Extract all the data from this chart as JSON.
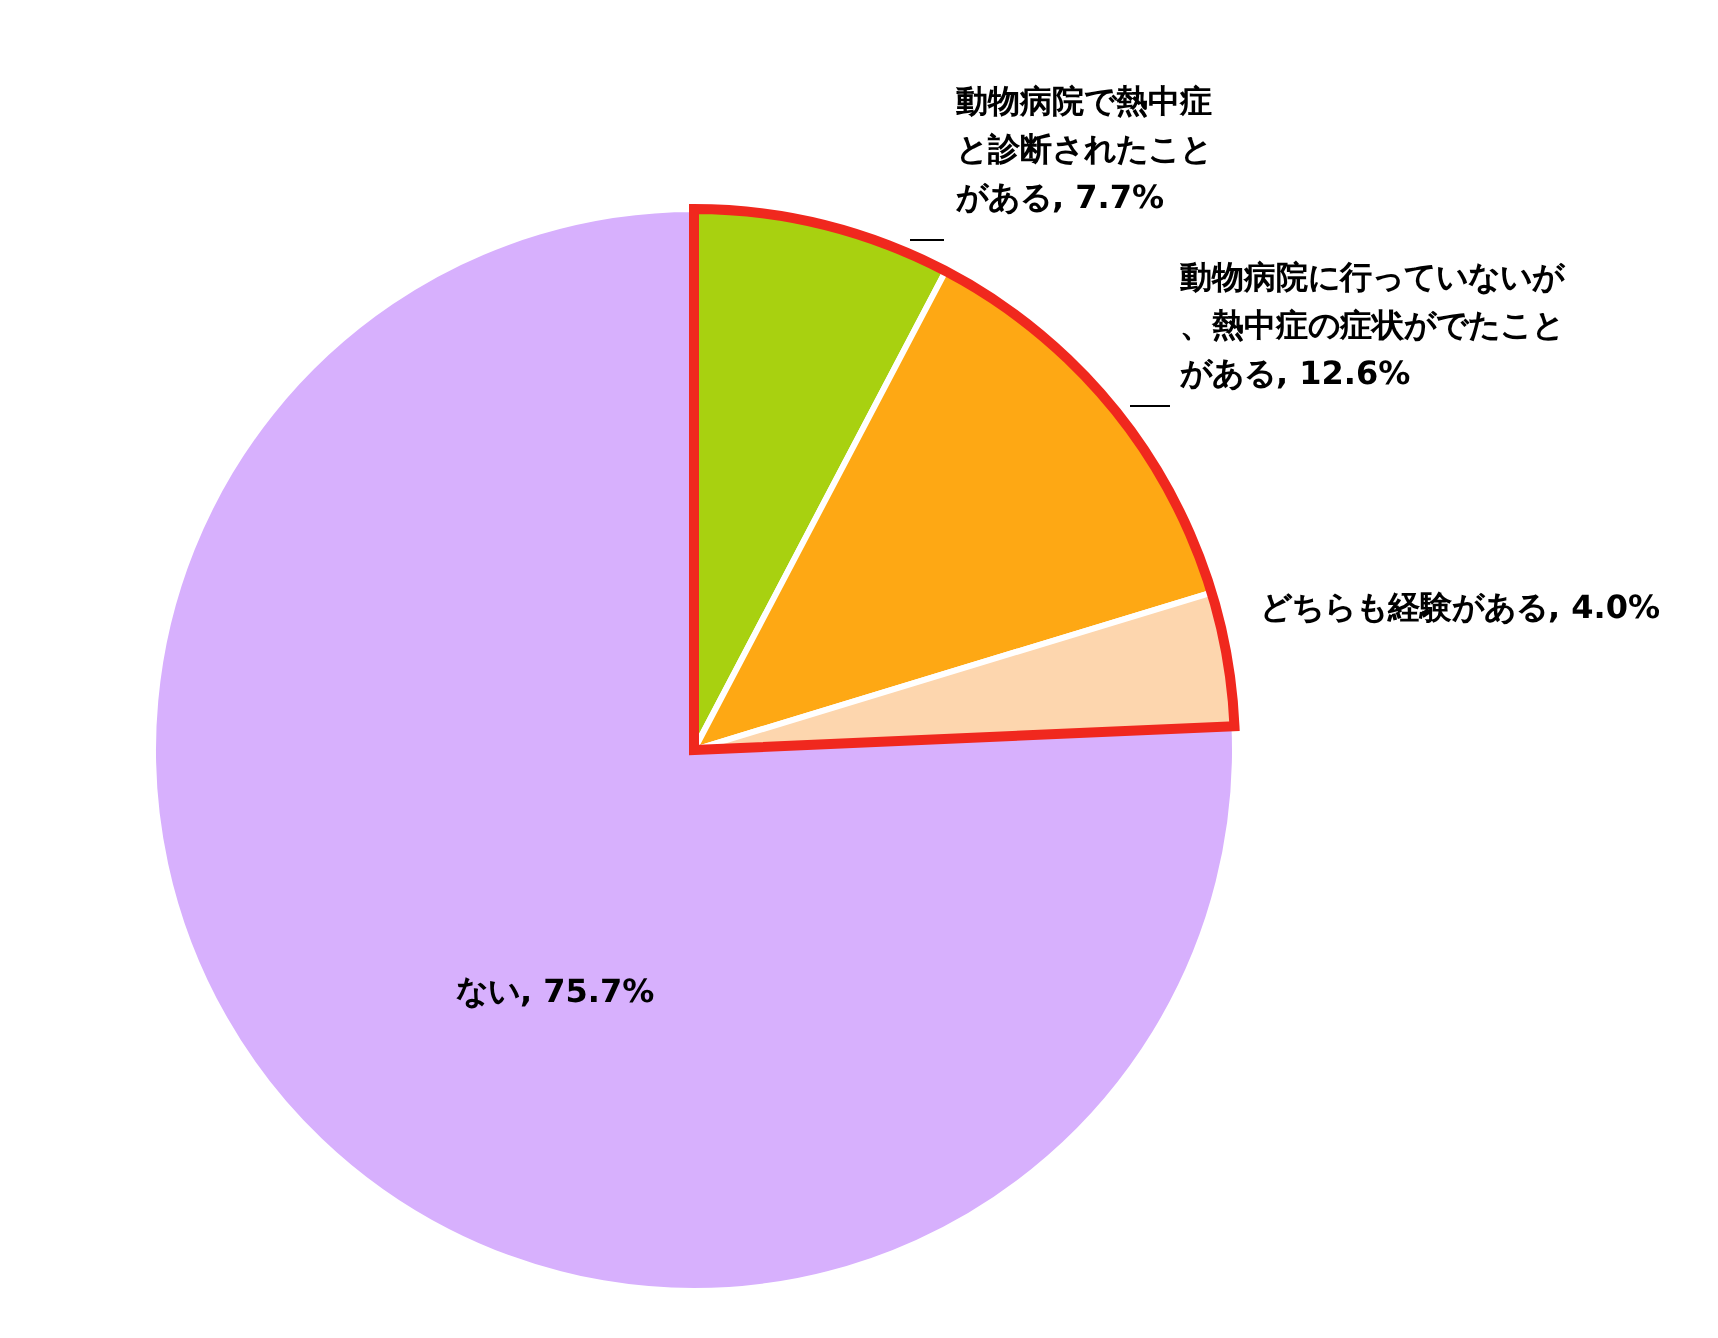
{
  "chart_data": {
    "type": "pie",
    "categories": [
      "動物病院で熱中症と診断されたことがある",
      "動物病院に行っていないが、熱中症の症状がでたことがある",
      "どちらも経験がある",
      "ない"
    ],
    "values": [
      7.7,
      12.6,
      4.0,
      75.7
    ],
    "value_labels": [
      "7.7%",
      "12.6%",
      "4.0%",
      "75.7%"
    ],
    "colors": [
      "#a8d110",
      "#fea814",
      "#fdd6ae",
      "#d7b0fd"
    ],
    "legend": false
  }
}
